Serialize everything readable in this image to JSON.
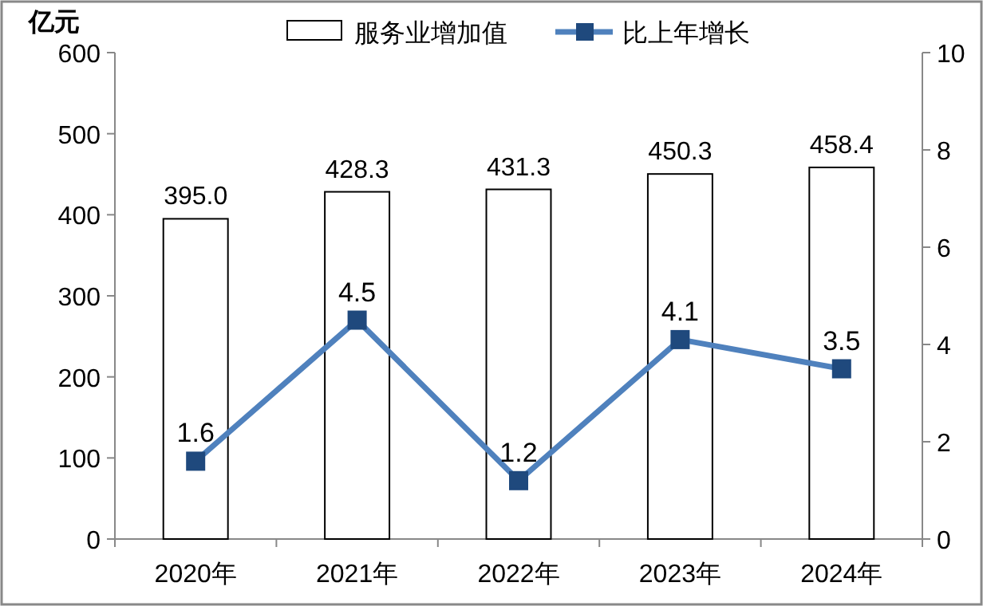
{
  "chart_data": {
    "type": "bar",
    "ylabel": "亿元",
    "categories": [
      "2020年",
      "2021年",
      "2022年",
      "2023年",
      "2024年"
    ],
    "series": [
      {
        "name": "服务业增加值",
        "color": "#ffffff",
        "values": [
          395.0,
          428.3,
          431.3,
          450.3,
          458.4
        ],
        "value_labels": [
          "395.0",
          "428.3",
          "431.3",
          "450.3",
          "458.4"
        ]
      },
      {
        "name": "比上年增长",
        "type": "line",
        "axis": "y2",
        "color": "#4f81bd",
        "marker": "square",
        "values": [
          1.6,
          4.5,
          1.2,
          4.1,
          3.5
        ]
      }
    ],
    "ylim": [
      0,
      600
    ],
    "yticks": [
      0,
      100,
      200,
      300,
      400,
      500,
      600
    ],
    "y2lim": [
      0,
      10
    ],
    "y2ticks": [
      0,
      2,
      4,
      6,
      8,
      10
    ],
    "data_labels": true,
    "legend": "top",
    "grid": false
  }
}
